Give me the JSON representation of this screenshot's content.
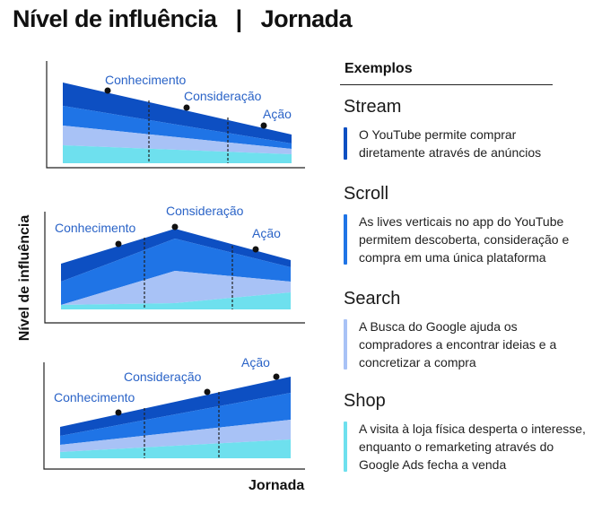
{
  "header": {
    "title": "Nível de influência   |   Jornada"
  },
  "axes": {
    "y_label": "Nível de influência",
    "x_label": "Jornada"
  },
  "colors": {
    "darkest": "#0d4fc2",
    "dark": "#1f74e6",
    "light": "#a8c2f6",
    "cyan": "#6ee0ee",
    "label": "#2a63c7"
  },
  "charts": [
    {
      "labels": [
        "Conhecimento",
        "Consideração",
        "Ação"
      ]
    },
    {
      "labels": [
        "Conhecimento",
        "Consideração",
        "Ação"
      ]
    },
    {
      "labels": [
        "Conhecimento",
        "Consideração",
        "Ação"
      ]
    }
  ],
  "examples": {
    "heading": "Exemplos",
    "items": [
      {
        "title": "Stream",
        "text": "O YouTube permite comprar diretamente através de anúncios",
        "color": "#0d4fc2"
      },
      {
        "title": "Scroll",
        "text": "As lives verticais no app do YouTube permitem descoberta, consideração e compra em uma única plataforma",
        "color": "#1f74e6"
      },
      {
        "title": "Search",
        "text": "A Busca do Google ajuda os compradores a encontrar ideias e a concretizar a compra",
        "color": "#a8c2f6"
      },
      {
        "title": "Shop",
        "text": "A visita à loja física desperta o interesse, enquanto o remarketing através do Google Ads fecha a venda",
        "color": "#6ee0ee"
      }
    ]
  }
}
